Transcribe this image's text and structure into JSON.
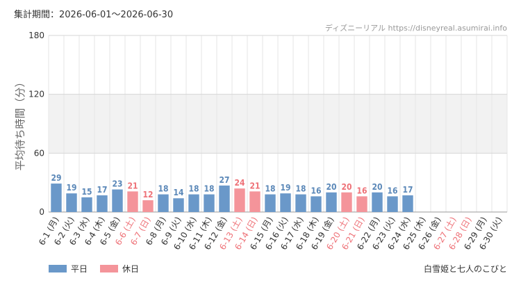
{
  "header": {
    "period_label": "集計期間：2026-06-01〜2026-06-30",
    "source_label": "ディズニーリアル https://disneyreal.asumirai.info"
  },
  "legend": {
    "weekday_label": "平日",
    "holiday_label": "休日",
    "weekday_color": "#6a98c9",
    "holiday_color": "#f4949a"
  },
  "attraction_name": "白雪姫と七人のこびと",
  "colors": {
    "weekday": "#6a98c9",
    "holiday": "#f4949a",
    "weekday_text": "#5b88b8",
    "holiday_text": "#ee7278",
    "axis_text": "#333333",
    "band": "#f2f2f2",
    "grid": "#e6e6e6"
  },
  "chart_data": {
    "type": "bar",
    "title": "",
    "xlabel": "",
    "ylabel": "平均待ち時間（分）",
    "ylim": [
      0,
      180
    ],
    "yticks": [
      0,
      60,
      120,
      180
    ],
    "categories": [
      "6-1 (月)",
      "6-2 (火)",
      "6-3 (水)",
      "6-4 (木)",
      "6-5 (金)",
      "6-6 (土)",
      "6-7 (日)",
      "6-8 (月)",
      "6-9 (火)",
      "6-10 (水)",
      "6-11 (木)",
      "6-12 (金)",
      "6-13 (土)",
      "6-14 (日)",
      "6-15 (月)",
      "6-16 (火)",
      "6-17 (水)",
      "6-18 (木)",
      "6-19 (金)",
      "6-20 (土)",
      "6-21 (日)",
      "6-22 (月)",
      "6-23 (火)",
      "6-24 (水)",
      "6-25 (木)",
      "6-26 (金)",
      "6-27 (土)",
      "6-28 (日)",
      "6-29 (月)",
      "6-30 (火)"
    ],
    "values": [
      29,
      19,
      15,
      17,
      23,
      21,
      12,
      18,
      14,
      18,
      18,
      27,
      24,
      21,
      18,
      19,
      18,
      16,
      20,
      20,
      16,
      20,
      16,
      17,
      null,
      null,
      null,
      null,
      null,
      null
    ],
    "holiday": [
      false,
      false,
      false,
      false,
      false,
      true,
      true,
      false,
      false,
      false,
      false,
      false,
      true,
      true,
      false,
      false,
      false,
      false,
      false,
      true,
      true,
      false,
      false,
      false,
      false,
      false,
      true,
      true,
      false,
      false
    ],
    "series": [
      {
        "name": "平日",
        "color": "#6a98c9"
      },
      {
        "name": "休日",
        "color": "#f4949a"
      }
    ],
    "grid": true,
    "legend_position": "bottom-left"
  }
}
